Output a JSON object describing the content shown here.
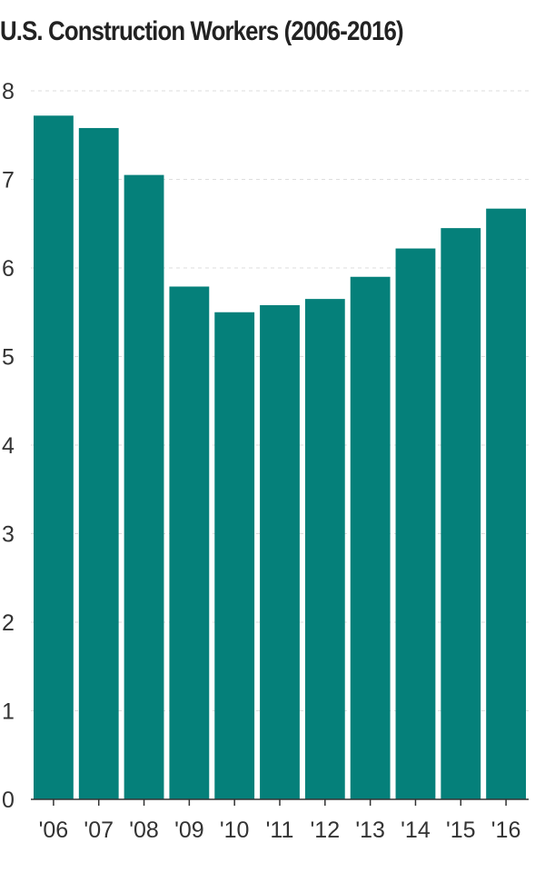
{
  "chart_data": {
    "type": "bar",
    "title": "U.S. Construction Workers (2006-2016)",
    "xlabel": "",
    "ylabel": "",
    "categories": [
      "'06",
      "'07",
      "'08",
      "'09",
      "'10",
      "'11",
      "'12",
      "'13",
      "'14",
      "'15",
      "'16"
    ],
    "values": [
      7.72,
      7.58,
      7.05,
      5.79,
      5.5,
      5.58,
      5.65,
      5.9,
      6.22,
      6.45,
      6.67
    ],
    "yticks": [
      0,
      1,
      2,
      3,
      4,
      5,
      6,
      7,
      8
    ],
    "ylim": [
      0,
      8
    ],
    "grid": true,
    "legend": "none",
    "bar_color": "#05807a",
    "grid_color": "#dddddd"
  }
}
